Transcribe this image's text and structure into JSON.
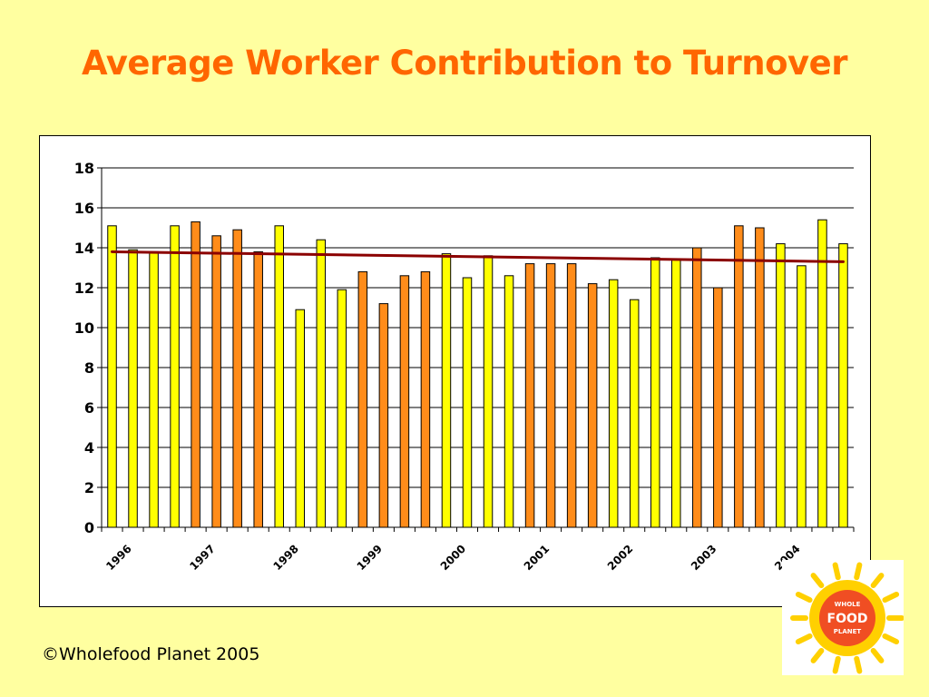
{
  "title": "Average Worker Contribution to Turnover",
  "footer": "©Wholefood Planet 2005",
  "logo": {
    "lines": [
      "WHOLE",
      "FOOD",
      "PLANET"
    ]
  },
  "colors": {
    "background": "#FFFFA0",
    "title": "#FF6600",
    "bar_yellow": "#FFFF00",
    "bar_orange": "#FF8C1A",
    "trend": "#8B0000",
    "sun": "#FFD000",
    "logo_disc": "#F04E23"
  },
  "chart_data": {
    "type": "bar",
    "title": "",
    "xlabel": "",
    "ylabel": "",
    "ylim": [
      0,
      18
    ],
    "yticks": [
      0,
      2,
      4,
      6,
      8,
      10,
      12,
      14,
      16,
      18
    ],
    "grid": true,
    "legend": "none",
    "x_tick_labels": [
      "1996",
      "1997",
      "1998",
      "1999",
      "2000",
      "2001",
      "2002",
      "2003",
      "2004"
    ],
    "x_tick_every": 4,
    "values": [
      15.1,
      13.9,
      13.8,
      15.1,
      15.3,
      14.6,
      14.9,
      13.8,
      15.1,
      10.9,
      14.4,
      11.9,
      12.8,
      11.2,
      12.6,
      12.8,
      13.7,
      12.5,
      13.6,
      12.6,
      13.2,
      13.2,
      13.2,
      12.2,
      12.4,
      11.4,
      13.5,
      13.4,
      14.0,
      12.0,
      15.1,
      15.0,
      14.2,
      13.1,
      15.4,
      14.2
    ],
    "bar_colors": [
      "yellow",
      "yellow",
      "yellow",
      "yellow",
      "orange",
      "orange",
      "orange",
      "orange",
      "yellow",
      "yellow",
      "yellow",
      "yellow",
      "orange",
      "orange",
      "orange",
      "orange",
      "yellow",
      "yellow",
      "yellow",
      "yellow",
      "orange",
      "orange",
      "orange",
      "orange",
      "yellow",
      "yellow",
      "yellow",
      "yellow",
      "orange",
      "orange",
      "orange",
      "orange",
      "yellow",
      "yellow",
      "yellow",
      "yellow"
    ],
    "trendline": {
      "start": 13.8,
      "end": 13.3
    }
  }
}
